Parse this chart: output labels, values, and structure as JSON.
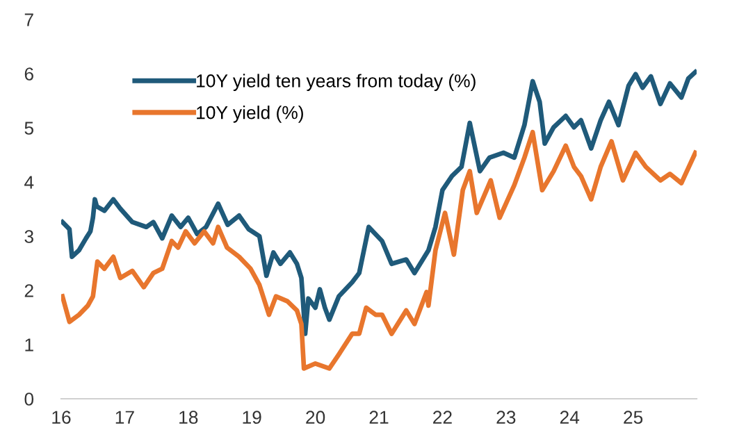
{
  "chart_data": {
    "type": "line",
    "xlim": [
      16,
      26
    ],
    "xticks": [
      16,
      17,
      18,
      19,
      20,
      21,
      22,
      23,
      24,
      25
    ],
    "ylim": [
      0,
      7
    ],
    "yticks": [
      0,
      1,
      2,
      3,
      4,
      5,
      6,
      7
    ],
    "grid": false,
    "legend": "top left",
    "marker": "none",
    "line_style": "solid",
    "series": [
      {
        "name": "10Y yield ten years from today (%)",
        "color": "#1f5a7a",
        "x": [
          16.02,
          16.13,
          16.17,
          16.28,
          16.39,
          16.46,
          16.5,
          16.53,
          16.56,
          16.68,
          16.82,
          16.93,
          17.12,
          17.34,
          17.45,
          17.59,
          17.74,
          17.88,
          18.0,
          18.14,
          18.28,
          18.47,
          18.62,
          18.8,
          18.95,
          19.12,
          19.23,
          19.34,
          19.45,
          19.6,
          19.71,
          19.78,
          19.82,
          19.84,
          19.89,
          20.0,
          20.07,
          20.15,
          20.22,
          20.37,
          20.58,
          20.69,
          20.84,
          21.05,
          21.2,
          21.43,
          21.56,
          21.78,
          21.89,
          22.0,
          22.15,
          22.3,
          22.43,
          22.59,
          22.74,
          22.96,
          23.13,
          23.29,
          23.42,
          23.53,
          23.61,
          23.75,
          23.94,
          24.07,
          24.18,
          24.34,
          24.49,
          24.62,
          24.77,
          24.93,
          25.04,
          25.15,
          25.28,
          25.43,
          25.58,
          25.76,
          25.87,
          25.98
        ],
        "values": [
          3.26,
          3.13,
          2.62,
          2.74,
          2.96,
          3.09,
          3.34,
          3.68,
          3.55,
          3.47,
          3.68,
          3.51,
          3.26,
          3.17,
          3.26,
          2.96,
          3.38,
          3.17,
          3.34,
          3.04,
          3.17,
          3.6,
          3.21,
          3.38,
          3.13,
          3.0,
          2.27,
          2.7,
          2.49,
          2.7,
          2.49,
          2.23,
          1.55,
          1.2,
          1.85,
          1.68,
          2.02,
          1.68,
          1.46,
          1.89,
          2.15,
          2.32,
          3.17,
          2.91,
          2.49,
          2.57,
          2.32,
          2.74,
          3.17,
          3.85,
          4.11,
          4.28,
          5.09,
          4.2,
          4.45,
          4.54,
          4.45,
          5.05,
          5.86,
          5.48,
          4.71,
          5.01,
          5.22,
          5.01,
          5.14,
          4.62,
          5.14,
          5.48,
          5.05,
          5.78,
          5.99,
          5.74,
          5.95,
          5.44,
          5.82,
          5.56,
          5.91,
          6.03
        ]
      },
      {
        "name": "10Y yield (%)",
        "color": "#e8762d",
        "x": [
          16.02,
          16.13,
          16.28,
          16.42,
          16.5,
          16.57,
          16.68,
          16.82,
          16.93,
          17.12,
          17.3,
          17.45,
          17.59,
          17.74,
          17.84,
          17.96,
          18.1,
          18.25,
          18.39,
          18.47,
          18.61,
          18.8,
          18.98,
          19.12,
          19.27,
          19.38,
          19.56,
          19.71,
          19.78,
          19.82,
          20.0,
          20.22,
          20.37,
          20.58,
          20.69,
          20.8,
          20.95,
          21.05,
          21.2,
          21.43,
          21.56,
          21.75,
          21.78,
          21.89,
          22.04,
          22.18,
          22.32,
          22.43,
          22.54,
          22.76,
          22.9,
          23.13,
          23.29,
          23.42,
          23.57,
          23.75,
          23.94,
          24.07,
          24.18,
          24.34,
          24.49,
          24.66,
          24.84,
          25.04,
          25.2,
          25.43,
          25.58,
          25.76,
          25.98
        ],
        "values": [
          1.89,
          1.42,
          1.55,
          1.72,
          1.89,
          2.53,
          2.4,
          2.62,
          2.23,
          2.36,
          2.06,
          2.32,
          2.4,
          2.91,
          2.79,
          3.09,
          2.87,
          3.09,
          2.87,
          3.17,
          2.79,
          2.62,
          2.4,
          2.1,
          1.55,
          1.89,
          1.8,
          1.63,
          1.38,
          0.56,
          0.65,
          0.56,
          0.82,
          1.2,
          1.2,
          1.68,
          1.55,
          1.55,
          1.2,
          1.63,
          1.38,
          1.97,
          1.72,
          2.74,
          3.43,
          2.66,
          3.85,
          4.2,
          3.43,
          4.03,
          3.34,
          3.94,
          4.45,
          4.92,
          3.85,
          4.2,
          4.67,
          4.28,
          4.11,
          3.68,
          4.28,
          4.75,
          4.03,
          4.54,
          4.28,
          4.03,
          4.15,
          3.98,
          4.54
        ]
      }
    ]
  }
}
